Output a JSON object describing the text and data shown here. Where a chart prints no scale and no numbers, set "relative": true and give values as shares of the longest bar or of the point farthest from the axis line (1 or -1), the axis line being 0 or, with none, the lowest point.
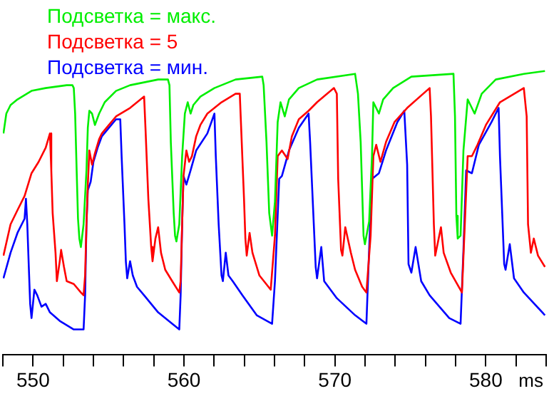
{
  "chart_data": {
    "type": "line",
    "relative": true,
    "xlabel": "ms",
    "xlim": [
      548,
      584
    ],
    "xticks": [
      {
        "value": 548,
        "label": null
      },
      550,
      {
        "value": 552,
        "label": null
      },
      {
        "value": 554,
        "label": null
      },
      {
        "value": 556,
        "label": null
      },
      {
        "value": 558,
        "label": null
      },
      560,
      {
        "value": 562,
        "label": null
      },
      {
        "value": 564,
        "label": null
      },
      {
        "value": 566,
        "label": null
      },
      {
        "value": 568,
        "label": null
      },
      570,
      {
        "value": 572,
        "label": null
      },
      {
        "value": 574,
        "label": null
      },
      {
        "value": 576,
        "label": null
      },
      {
        "value": 578,
        "label": null
      },
      580,
      {
        "value": 582,
        "label": null
      },
      {
        "value": 584,
        "label": null
      }
    ],
    "grid": false,
    "legend": "top left",
    "marker": "none",
    "line_style": "solid",
    "series": [
      {
        "name": "Подсветка = макс.",
        "color": "#00ee00",
        "x": [
          548.04,
          548.23,
          548.51,
          548.97,
          549.9,
          550.84,
          552.23,
          552.61,
          552.7,
          552.79,
          552.89,
          552.98,
          553.07,
          553.17,
          553.35,
          553.54,
          553.63,
          553.73,
          553.91,
          554.1,
          554.38,
          554.75,
          555.5,
          556.43,
          557.36,
          558.29,
          558.94,
          559.04,
          559.13,
          559.32,
          559.41,
          559.5,
          559.69,
          559.88,
          560.06,
          560.25,
          560.44,
          560.62,
          561.09,
          562.02,
          563.42,
          565.19,
          565.28,
          565.47,
          565.65,
          565.84,
          566.03,
          566.21,
          566.4,
          566.68,
          566.96,
          567.61,
          568.82,
          571.34,
          571.53,
          571.71,
          571.9,
          571.99,
          572.27,
          572.46,
          572.55,
          572.92,
          573.2,
          573.86,
          575.07,
          577.86,
          577.96,
          578.05,
          578.14,
          578.33,
          578.52,
          578.8,
          579.26,
          579.73,
          580.66,
          582.52,
          583.92
        ],
        "values": [
          0.78,
          0.85,
          0.88,
          0.9,
          0.93,
          0.94,
          0.95,
          0.95,
          0.94,
          0.85,
          0.65,
          0.48,
          0.41,
          0.38,
          0.46,
          0.65,
          0.8,
          0.86,
          0.85,
          0.81,
          0.85,
          0.89,
          0.93,
          0.95,
          0.96,
          0.97,
          0.97,
          0.95,
          0.75,
          0.5,
          0.42,
          0.4,
          0.46,
          0.7,
          0.85,
          0.89,
          0.85,
          0.88,
          0.91,
          0.94,
          0.97,
          0.98,
          0.95,
          0.75,
          0.5,
          0.42,
          0.54,
          0.82,
          0.89,
          0.84,
          0.9,
          0.94,
          0.97,
          0.99,
          0.92,
          0.75,
          0.42,
          0.39,
          0.47,
          0.7,
          0.89,
          0.85,
          0.9,
          0.94,
          0.98,
          0.99,
          0.84,
          0.49,
          0.41,
          0.42,
          0.72,
          0.9,
          0.85,
          0.92,
          0.97,
          0.99,
          1.0
        ]
      },
      {
        "name": "Подсветка = 5",
        "color": "#ff0000",
        "x": [
          548.04,
          548.51,
          548.97,
          549.44,
          549.9,
          550.37,
          550.84,
          551.12,
          551.21,
          551.3,
          551.49,
          551.58,
          551.77,
          551.86,
          552.05,
          552.23,
          552.7,
          553.17,
          553.35,
          553.45,
          553.54,
          553.63,
          553.73,
          553.91,
          554.1,
          554.38,
          554.56,
          555.03,
          555.5,
          556.43,
          557.36,
          557.45,
          557.64,
          557.83,
          557.92,
          558.11,
          558.29,
          558.48,
          558.76,
          559.22,
          559.69,
          559.78,
          559.88,
          559.97,
          560.16,
          560.34,
          560.53,
          560.81,
          561.09,
          561.55,
          562.49,
          563.42,
          563.7,
          563.79,
          563.98,
          564.07,
          564.16,
          564.35,
          564.54,
          565.0,
          565.75,
          566.03,
          566.21,
          566.49,
          566.87,
          567.15,
          567.61,
          568.26,
          568.82,
          569.94,
          570.13,
          570.22,
          570.41,
          570.5,
          570.69,
          571.06,
          571.34,
          571.81,
          572.09,
          572.37,
          572.55,
          572.74,
          573.02,
          573.39,
          573.95,
          574.79,
          576.28,
          576.37,
          576.56,
          576.65,
          577.03,
          577.21,
          577.68,
          578.42,
          578.61,
          578.8,
          579.08,
          579.45,
          580.01,
          580.94,
          582.52,
          582.71,
          582.8,
          582.99,
          583.18,
          583.46,
          583.92
        ],
        "values": [
          0.35,
          0.46,
          0.51,
          0.56,
          0.64,
          0.68,
          0.73,
          0.78,
          0.65,
          0.5,
          0.36,
          0.26,
          0.33,
          0.37,
          0.31,
          0.26,
          0.25,
          0.22,
          0.21,
          0.28,
          0.46,
          0.6,
          0.72,
          0.67,
          0.71,
          0.76,
          0.78,
          0.81,
          0.84,
          0.87,
          0.91,
          0.8,
          0.55,
          0.38,
          0.33,
          0.41,
          0.45,
          0.36,
          0.3,
          0.26,
          0.22,
          0.26,
          0.46,
          0.63,
          0.72,
          0.68,
          0.7,
          0.77,
          0.81,
          0.85,
          0.89,
          0.92,
          0.92,
          0.8,
          0.55,
          0.41,
          0.35,
          0.43,
          0.36,
          0.28,
          0.23,
          0.42,
          0.7,
          0.72,
          0.69,
          0.77,
          0.83,
          0.86,
          0.89,
          0.94,
          0.92,
          0.62,
          0.37,
          0.35,
          0.45,
          0.36,
          0.3,
          0.24,
          0.22,
          0.42,
          0.7,
          0.74,
          0.68,
          0.75,
          0.82,
          0.87,
          0.94,
          0.84,
          0.46,
          0.35,
          0.45,
          0.36,
          0.29,
          0.22,
          0.46,
          0.7,
          0.7,
          0.74,
          0.81,
          0.89,
          0.94,
          0.84,
          0.46,
          0.36,
          0.41,
          0.35,
          0.31
        ]
      },
      {
        "name": "Подсветка = мин.",
        "color": "#0000ff",
        "x": [
          548.04,
          548.51,
          548.97,
          549.44,
          549.53,
          549.62,
          549.72,
          549.81,
          549.9,
          550.09,
          550.28,
          550.56,
          550.84,
          551.12,
          551.77,
          552.7,
          553.35,
          553.45,
          553.54,
          553.63,
          553.82,
          554.0,
          554.28,
          554.56,
          555.03,
          555.5,
          555.78,
          555.87,
          556.06,
          556.15,
          556.24,
          556.43,
          556.61,
          556.89,
          557.36,
          558.29,
          559.22,
          559.69,
          559.78,
          559.88,
          559.97,
          560.16,
          560.44,
          560.81,
          561.55,
          562.02,
          562.11,
          562.3,
          562.49,
          562.58,
          562.77,
          562.95,
          563.23,
          563.88,
          564.82,
          565.84,
          566.03,
          566.31,
          566.49,
          566.96,
          567.61,
          568.26,
          568.36,
          568.73,
          568.82,
          569.1,
          569.29,
          570.13,
          571.34,
          572.09,
          572.27,
          572.46,
          572.92,
          573.39,
          574.14,
          574.6,
          574.79,
          574.88,
          575.07,
          575.35,
          575.72,
          576.28,
          577.58,
          578.33,
          578.52,
          578.7,
          579.08,
          579.54,
          580.38,
          580.85,
          580.94,
          581.22,
          581.31,
          581.59,
          581.87,
          582.52,
          583.92
        ],
        "values": [
          0.27,
          0.36,
          0.43,
          0.48,
          0.55,
          0.46,
          0.31,
          0.18,
          0.13,
          0.23,
          0.21,
          0.17,
          0.18,
          0.15,
          0.12,
          0.09,
          0.09,
          0.21,
          0.46,
          0.58,
          0.61,
          0.68,
          0.73,
          0.77,
          0.8,
          0.83,
          0.83,
          0.7,
          0.46,
          0.33,
          0.27,
          0.33,
          0.28,
          0.24,
          0.21,
          0.15,
          0.11,
          0.09,
          0.21,
          0.46,
          0.63,
          0.6,
          0.65,
          0.72,
          0.78,
          0.85,
          0.7,
          0.46,
          0.28,
          0.26,
          0.36,
          0.28,
          0.26,
          0.21,
          0.14,
          0.11,
          0.26,
          0.62,
          0.63,
          0.72,
          0.8,
          0.85,
          0.75,
          0.31,
          0.27,
          0.38,
          0.26,
          0.2,
          0.14,
          0.11,
          0.37,
          0.62,
          0.64,
          0.72,
          0.82,
          0.86,
          0.67,
          0.32,
          0.29,
          0.38,
          0.26,
          0.21,
          0.13,
          0.11,
          0.37,
          0.65,
          0.64,
          0.74,
          0.82,
          0.87,
          0.7,
          0.32,
          0.3,
          0.39,
          0.27,
          0.22,
          0.14
        ]
      }
    ]
  }
}
